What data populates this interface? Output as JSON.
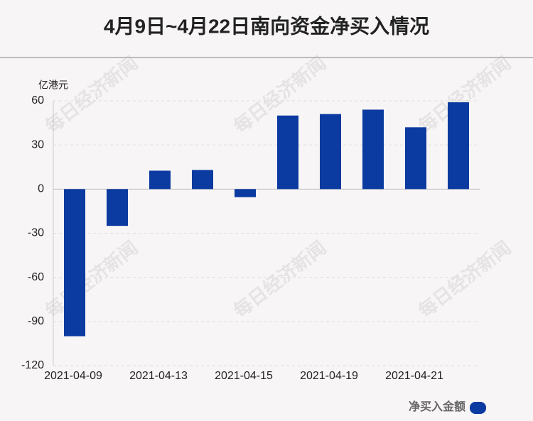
{
  "chart_data": {
    "type": "bar",
    "title": "4月9日~4月22日南向资金净买入情况",
    "y_unit": "亿港元",
    "watermark": "每日经济新闻",
    "categories": [
      "2021-04-09",
      null,
      "2021-04-13",
      null,
      "2021-04-15",
      null,
      "2021-04-19",
      null,
      "2021-04-21",
      null
    ],
    "series": [
      {
        "name": "净买入金额",
        "color": "#0b3aa0",
        "values": [
          -100,
          -25,
          12.5,
          13,
          -5.5,
          50,
          51,
          54,
          42,
          59
        ]
      }
    ],
    "ylim": [
      -120,
      60
    ],
    "yticks": [
      -120,
      -90,
      -60,
      -30,
      0,
      30,
      60
    ],
    "grid": true
  }
}
